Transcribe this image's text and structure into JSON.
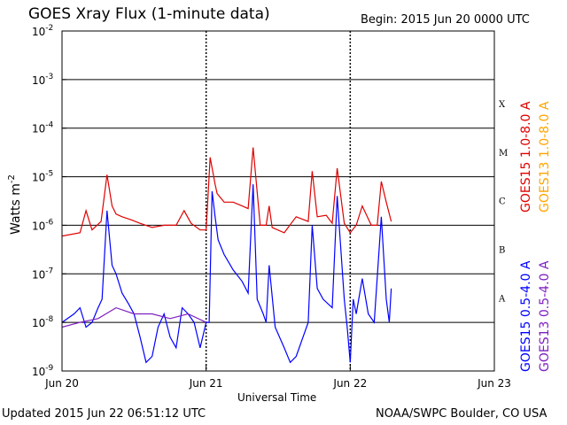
{
  "header": {
    "title": "GOES Xray Flux (1-minute data)",
    "begin": "Begin:  2015 Jun 20 0000 UTC"
  },
  "footer": {
    "updated": "Updated 2015 Jun 22 06:51:12 UTC",
    "source": "NOAA/SWPC Boulder, CO USA"
  },
  "colors": {
    "goes15_long": "#e00000",
    "goes13_long": "#ffa500",
    "goes15_short": "#0000ff",
    "goes13_short": "#8020c0"
  },
  "chart_data": {
    "type": "line",
    "xlabel": "Universal Time",
    "ylabel": "Watts m",
    "ylabel_exponent": "-2",
    "yscale": "log",
    "ylim": [
      1e-09,
      0.01
    ],
    "grid": true,
    "y_ticks": [
      {
        "value": 0.01,
        "mantissa": "10",
        "exponent": "-2"
      },
      {
        "value": 0.001,
        "mantissa": "10",
        "exponent": "-3"
      },
      {
        "value": 0.0001,
        "mantissa": "10",
        "exponent": "-4"
      },
      {
        "value": 1e-05,
        "mantissa": "10",
        "exponent": "-5"
      },
      {
        "value": 1e-06,
        "mantissa": "10",
        "exponent": "-6"
      },
      {
        "value": 1e-07,
        "mantissa": "10",
        "exponent": "-7"
      },
      {
        "value": 1e-08,
        "mantissa": "10",
        "exponent": "-8"
      },
      {
        "value": 1e-09,
        "mantissa": "10",
        "exponent": "-9"
      }
    ],
    "x_ticks": [
      "Jun 20",
      "Jun 21",
      "Jun 22",
      "Jun 23"
    ],
    "x_range_days": [
      0,
      3
    ],
    "flare_classes": [
      {
        "label": "X",
        "value": 0.00032
      },
      {
        "label": "M",
        "value": 3.2e-05
      },
      {
        "label": "C",
        "value": 3.2e-06
      },
      {
        "label": "B",
        "value": 3.2e-07
      },
      {
        "label": "A",
        "value": 3.2e-08
      }
    ],
    "legend": [
      {
        "name": "GOES15 1.0-8.0 A",
        "color": "#e00000"
      },
      {
        "name": "GOES13 1.0-8.0 A",
        "color": "#ffa500"
      },
      {
        "name": "GOES15 0.5-4.0 A",
        "color": "#0000ff"
      },
      {
        "name": "GOES13 0.5-4.0 A",
        "color": "#8020c0"
      }
    ],
    "series": [
      {
        "name": "GOES15 1.0-8.0 A",
        "color": "#e00000",
        "x": [
          "Jun 20 00:00",
          "Jun 20 03:00",
          "Jun 20 04:00",
          "Jun 20 05:00",
          "Jun 20 06:30",
          "Jun 20 07:30",
          "Jun 20 08:20",
          "Jun 20 09:00",
          "Jun 20 10:00",
          "Jun 20 11:30",
          "Jun 20 13:00",
          "Jun 20 15:00",
          "Jun 20 17:00",
          "Jun 20 19:00",
          "Jun 20 20:20",
          "Jun 20 21:30",
          "Jun 20 23:00",
          "Jun 21 00:00",
          "Jun 21 00:40",
          "Jun 21 01:30",
          "Jun 21 01:50",
          "Jun 21 03:00",
          "Jun 21 04:30",
          "Jun 21 06:00",
          "Jun 21 07:00",
          "Jun 21 07:50",
          "Jun 21 09:00",
          "Jun 21 10:00",
          "Jun 21 10:30",
          "Jun 21 11:00",
          "Jun 21 13:00",
          "Jun 21 15:00",
          "Jun 21 17:00",
          "Jun 21 17:40",
          "Jun 21 18:30",
          "Jun 21 20:00",
          "Jun 21 21:00",
          "Jun 21 21:50",
          "Jun 21 23:00",
          "Jun 22 00:00",
          "Jun 22 01:00",
          "Jun 22 02:00",
          "Jun 22 03:30",
          "Jun 22 04:30",
          "Jun 22 05:10",
          "Jun 22 06:00",
          "Jun 22 06:50"
        ],
        "t": [
          0,
          3,
          4,
          5,
          6.5,
          7.5,
          8.33,
          9,
          10,
          11.5,
          13,
          15,
          17,
          19,
          20.33,
          21.5,
          23,
          24,
          24.67,
          25.5,
          25.83,
          27,
          28.5,
          30,
          31,
          31.83,
          33,
          34,
          34.5,
          35,
          37,
          39,
          41,
          41.67,
          42.5,
          44,
          45,
          45.83,
          47,
          48,
          49,
          50,
          51.5,
          52.5,
          53.17,
          54,
          54.83
        ],
        "values": [
          6e-07,
          7e-07,
          2e-06,
          8e-07,
          1.2e-06,
          1.1e-05,
          2.5e-06,
          1.7e-06,
          1.5e-06,
          1.3e-06,
          1.1e-06,
          9e-07,
          1e-06,
          1e-06,
          2e-06,
          1.1e-06,
          8e-07,
          8e-07,
          2.5e-05,
          7e-06,
          4.5e-06,
          3e-06,
          3e-06,
          2.5e-06,
          2.2e-06,
          4e-05,
          1e-06,
          1e-06,
          2.5e-06,
          9e-07,
          7e-07,
          1.5e-06,
          1.2e-06,
          1.3e-05,
          1.5e-06,
          1.6e-06,
          1.1e-06,
          1.5e-05,
          1.1e-06,
          7e-07,
          1e-06,
          2.5e-06,
          1e-06,
          1e-06,
          8e-06,
          3e-06,
          1.2e-06
        ]
      },
      {
        "name": "GOES15 0.5-4.0 A",
        "color": "#0000ff",
        "x": [
          "Jun 20 00:00",
          "Jun 20 02:00",
          "Jun 20 03:00",
          "Jun 20 04:00",
          "Jun 20 05:00",
          "Jun 20 06:00",
          "Jun 20 06:40",
          "Jun 20 07:30",
          "Jun 20 08:20",
          "Jun 20 09:00",
          "Jun 20 10:00",
          "Jun 20 11:00",
          "Jun 20 12:00",
          "Jun 20 13:00",
          "Jun 20 14:00",
          "Jun 20 15:00",
          "Jun 20 16:00",
          "Jun 20 17:00",
          "Jun 20 18:00",
          "Jun 20 19:00",
          "Jun 20 20:00",
          "Jun 20 21:00",
          "Jun 20 22:00",
          "Jun 20 23:00",
          "Jun 21 00:00",
          "Jun 21 00:30",
          "Jun 21 01:00",
          "Jun 21 01:30",
          "Jun 21 02:00",
          "Jun 21 03:00",
          "Jun 21 04:30",
          "Jun 21 06:00",
          "Jun 21 07:00",
          "Jun 21 07:50",
          "Jun 21 08:30",
          "Jun 21 09:30",
          "Jun 21 10:00",
          "Jun 21 10:30",
          "Jun 21 11:30",
          "Jun 21 13:00",
          "Jun 21 14:00",
          "Jun 21 15:00",
          "Jun 21 17:00",
          "Jun 21 17:40",
          "Jun 21 18:30",
          "Jun 21 19:30",
          "Jun 21 21:00",
          "Jun 21 21:50",
          "Jun 21 23:00",
          "Jun 21 23:30",
          "Jun 22 00:00",
          "Jun 22 00:30",
          "Jun 22 01:00",
          "Jun 22 02:00",
          "Jun 22 03:00",
          "Jun 22 04:00",
          "Jun 22 05:10",
          "Jun 22 06:00",
          "Jun 22 06:30",
          "Jun 22 06:50"
        ],
        "t": [
          0,
          2,
          3,
          4,
          5,
          6,
          6.67,
          7.5,
          8.33,
          9,
          10,
          11,
          12,
          13,
          14,
          15,
          16,
          17,
          18,
          19,
          20,
          21,
          22,
          23,
          24,
          24.5,
          25,
          25.5,
          26,
          27,
          28.5,
          30,
          31,
          31.83,
          32.5,
          33.5,
          34,
          34.5,
          35.5,
          37,
          38,
          39,
          41,
          41.67,
          42.5,
          43.5,
          45,
          45.83,
          47,
          47.5,
          48,
          48.5,
          49,
          50,
          51,
          52,
          53.17,
          54,
          54.5,
          54.83
        ],
        "values": [
          1e-08,
          1.5e-08,
          2e-08,
          8e-09,
          1e-08,
          2e-08,
          3e-08,
          2e-06,
          1.5e-07,
          1e-07,
          4e-08,
          2.5e-08,
          1.5e-08,
          5e-09,
          1.5e-09,
          2e-09,
          8e-09,
          1.5e-08,
          5e-09,
          3e-09,
          2e-08,
          1.5e-08,
          1e-08,
          3e-09,
          1e-08,
          1e-08,
          5e-06,
          1.5e-06,
          5e-07,
          2.5e-07,
          1.2e-07,
          7e-08,
          4e-08,
          7e-06,
          3e-08,
          1.5e-08,
          1e-08,
          1.5e-07,
          8e-09,
          3e-09,
          1.5e-09,
          2e-09,
          1e-08,
          1e-06,
          5e-08,
          3e-08,
          2e-08,
          4e-06,
          3e-08,
          8e-09,
          1.5e-09,
          3e-08,
          1.5e-08,
          8e-08,
          1.5e-08,
          1e-08,
          1.5e-06,
          3e-08,
          1e-08,
          5e-08
        ]
      },
      {
        "name": "GOES13 0.5-4.0 A",
        "color": "#8020c0",
        "x": [
          "Jun 20 00:00",
          "Jun 20 03:00",
          "Jun 20 06:00",
          "Jun 20 09:00",
          "Jun 20 12:00",
          "Jun 20 15:00",
          "Jun 20 18:00",
          "Jun 20 21:00",
          "Jun 21 00:00"
        ],
        "t": [
          0,
          3,
          6,
          9,
          12,
          15,
          18,
          21,
          24
        ],
        "values": [
          8e-09,
          1e-08,
          1.2e-08,
          2e-08,
          1.5e-08,
          1.5e-08,
          1.2e-08,
          1.5e-08,
          1e-08
        ]
      }
    ]
  }
}
